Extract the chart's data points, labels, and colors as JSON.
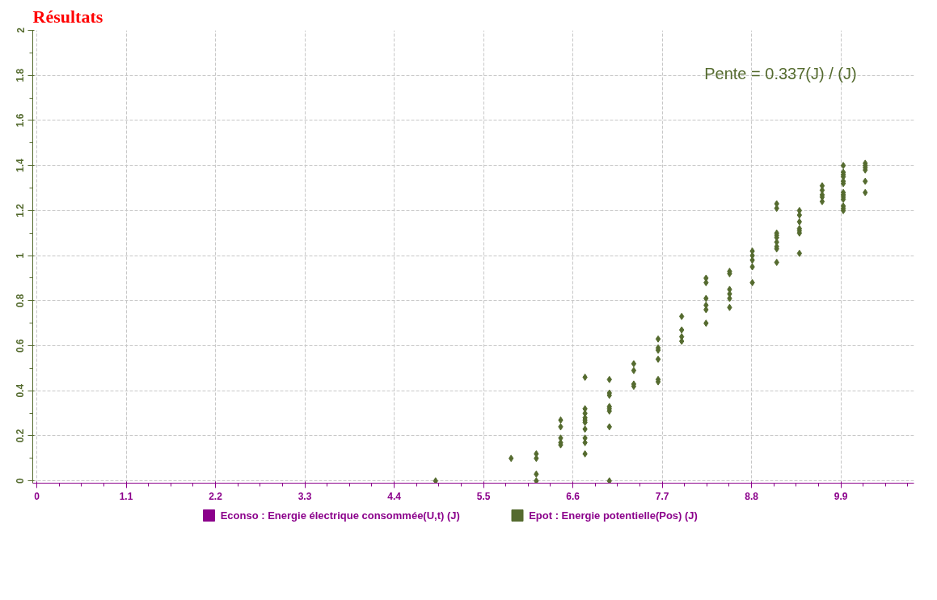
{
  "chart_data": {
    "type": "scatter",
    "title": "Résultats",
    "annotations": [
      "Pente = 0.337(J) / (J)"
    ],
    "xlim": [
      -0.05,
      10.8
    ],
    "ylim": [
      -0.01,
      2.0
    ],
    "xticks": [
      0,
      1.1,
      2.2,
      3.3,
      4.4,
      5.5,
      6.6,
      7.7,
      8.8,
      9.9
    ],
    "yticks": [
      0,
      0.2,
      0.4,
      0.6,
      0.8,
      1,
      1.2,
      1.4,
      1.6,
      1.8,
      2
    ],
    "grid": true,
    "legend": "bottom",
    "marker": "diamond",
    "series": [
      {
        "name": "Econso : Energie électrique consommée(U,t) (J)",
        "color": "#8b008b"
      },
      {
        "name": "Epot : Energie potentielle(Pos) (J)",
        "color": "#556b2f",
        "x": [
          4.91,
          5.84,
          6.15,
          6.15,
          6.15,
          6.15,
          6.45,
          6.45,
          6.45,
          6.45,
          6.45,
          6.75,
          6.75,
          6.75,
          6.75,
          6.75,
          6.75,
          6.75,
          6.75,
          6.75,
          6.75,
          7.05,
          7.05,
          7.05,
          7.05,
          7.05,
          7.05,
          7.05,
          7.05,
          7.35,
          7.35,
          7.35,
          7.35,
          7.65,
          7.65,
          7.65,
          7.65,
          7.65,
          7.65,
          7.94,
          7.94,
          7.94,
          7.94,
          8.24,
          8.24,
          8.24,
          8.24,
          8.24,
          8.24,
          8.53,
          8.53,
          8.53,
          8.53,
          8.53,
          8.53,
          8.81,
          8.81,
          8.81,
          8.81,
          8.81,
          9.11,
          9.11,
          9.11,
          9.11,
          9.11,
          9.11,
          9.11,
          9.11,
          9.11,
          9.39,
          9.39,
          9.39,
          9.39,
          9.39,
          9.39,
          9.39,
          9.67,
          9.67,
          9.67,
          9.67,
          9.67,
          9.93,
          9.93,
          9.93,
          9.93,
          9.93,
          9.93,
          9.93,
          9.93,
          9.93,
          9.93,
          9.93,
          9.93,
          9.93,
          10.2,
          10.2,
          10.2,
          10.2,
          10.2,
          10.2
        ],
        "values": [
          0,
          0.1,
          0.12,
          0.1,
          0.03,
          0,
          0.27,
          0.24,
          0.19,
          0.17,
          0.16,
          0.46,
          0.32,
          0.3,
          0.28,
          0.27,
          0.26,
          0.23,
          0.19,
          0.17,
          0.12,
          0.45,
          0.39,
          0.38,
          0.33,
          0.32,
          0.31,
          0.24,
          0,
          0.52,
          0.49,
          0.43,
          0.42,
          0.63,
          0.59,
          0.58,
          0.54,
          0.45,
          0.44,
          0.73,
          0.67,
          0.64,
          0.62,
          0.9,
          0.88,
          0.81,
          0.78,
          0.76,
          0.7,
          0.93,
          0.92,
          0.85,
          0.83,
          0.81,
          0.77,
          1.02,
          1,
          0.98,
          0.95,
          0.88,
          1.23,
          1.21,
          1.1,
          1.09,
          1.08,
          1.06,
          1.04,
          1.03,
          0.97,
          1.2,
          1.18,
          1.15,
          1.12,
          1.11,
          1.1,
          1.01,
          1.31,
          1.29,
          1.27,
          1.26,
          1.24,
          1.4,
          1.37,
          1.36,
          1.35,
          1.33,
          1.32,
          1.28,
          1.27,
          1.26,
          1.25,
          1.22,
          1.21,
          1.2,
          1.41,
          1.4,
          1.39,
          1.38,
          1.33,
          1.28
        ]
      }
    ]
  }
}
